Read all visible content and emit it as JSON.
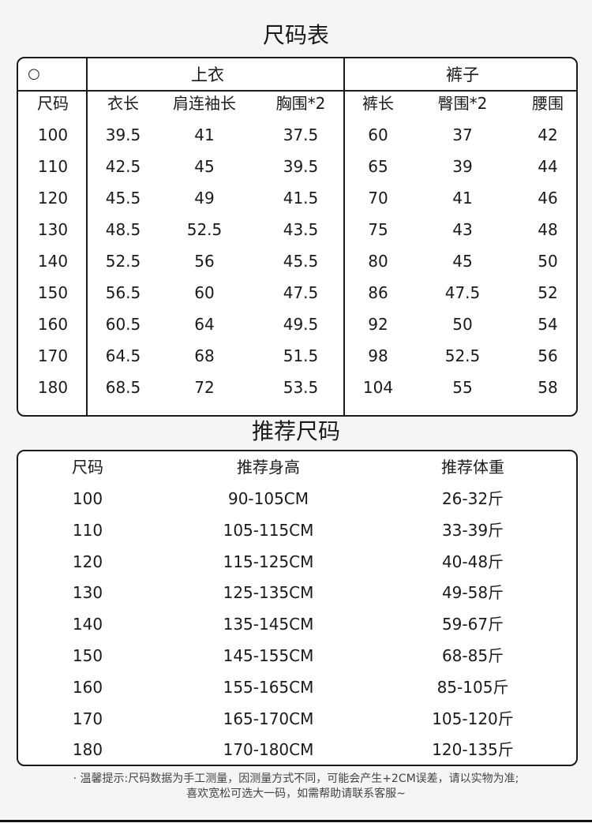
{
  "size_chart": {
    "title": "尺码表",
    "corner_symbol": "○",
    "group_top": "上衣",
    "group_pants": "裤子",
    "headers": [
      "尺码",
      "衣长",
      "肩连袖长",
      "胸围*2",
      "裤长",
      "臀围*2",
      "腰围"
    ],
    "rows": [
      [
        "100",
        "39.5",
        "41",
        "37.5",
        "60",
        "37",
        "42"
      ],
      [
        "110",
        "42.5",
        "45",
        "39.5",
        "65",
        "39",
        "44"
      ],
      [
        "120",
        "45.5",
        "49",
        "41.5",
        "70",
        "41",
        "46"
      ],
      [
        "130",
        "48.5",
        "52.5",
        "43.5",
        "75",
        "43",
        "48"
      ],
      [
        "140",
        "52.5",
        "56",
        "45.5",
        "80",
        "45",
        "50"
      ],
      [
        "150",
        "56.5",
        "60",
        "47.5",
        "86",
        "47.5",
        "52"
      ],
      [
        "160",
        "60.5",
        "64",
        "49.5",
        "92",
        "50",
        "54"
      ],
      [
        "170",
        "64.5",
        "68",
        "51.5",
        "98",
        "52.5",
        "56"
      ],
      [
        "180",
        "68.5",
        "72",
        "53.5",
        "104",
        "55",
        "58"
      ]
    ]
  },
  "recommend": {
    "title": "推荐尺码",
    "headers": [
      "尺码",
      "推荐身高",
      "推荐体重"
    ],
    "rows": [
      [
        "100",
        "90-105CM",
        "26-32斤"
      ],
      [
        "110",
        "105-115CM",
        "33-39斤"
      ],
      [
        "120",
        "115-125CM",
        "40-48斤"
      ],
      [
        "130",
        "125-135CM",
        "49-58斤"
      ],
      [
        "140",
        "135-145CM",
        "59-67斤"
      ],
      [
        "150",
        "145-155CM",
        "68-85斤"
      ],
      [
        "160",
        "155-165CM",
        "85-105斤"
      ],
      [
        "170",
        "165-170CM",
        "105-120斤"
      ],
      [
        "180",
        "170-180CM",
        "120-135斤"
      ]
    ]
  },
  "notes": [
    "· 温馨提示:尺码数据为手工测量，因测量方式不同，可能会产生+2CM误差，请以实物为准;",
    "喜欢宽松可选大一码，如需帮助请联系客服~"
  ]
}
